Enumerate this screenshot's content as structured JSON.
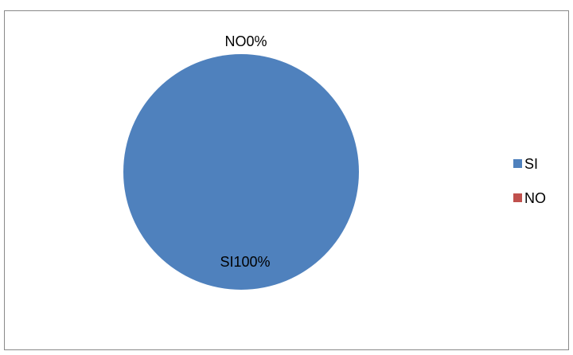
{
  "chart_data": {
    "type": "pie",
    "title": "",
    "slices": [
      {
        "label": "SI",
        "value": 100,
        "percent_label": "100%",
        "data_label": "SI100%",
        "color": "#4F81BD"
      },
      {
        "label": "NO",
        "value": 0,
        "percent_label": "0%",
        "data_label": "NO0%",
        "color": "#C0504D"
      }
    ],
    "legend": {
      "position": "right",
      "items": [
        {
          "label": "SI",
          "color": "#4F81BD"
        },
        {
          "label": "NO",
          "color": "#C0504D"
        }
      ]
    }
  }
}
